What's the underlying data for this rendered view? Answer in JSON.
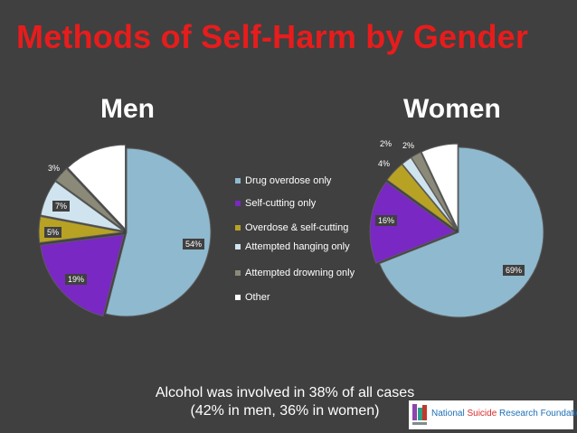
{
  "title": "Methods of Self-Harm by Gender",
  "footer": {
    "line1": "Alcohol was involved in 38% of all cases",
    "line2": "(42% in men, 36% in women)"
  },
  "logo": {
    "part1": "National ",
    "part2": "Suicide",
    "part3": " Research Foundation"
  },
  "colors": {
    "drug": "#8fb9ce",
    "cutting": "#7a28c3",
    "overdose_cutting": "#b8a224",
    "hanging": "#cfe4ee",
    "drowning": "#8b8a78",
    "other": "#ffffff"
  },
  "chart_data": {
    "type": "pie",
    "legend": [
      "Drug overdose only",
      "Self-cutting only",
      "Overdose & self-cutting",
      "Attempted hanging only",
      "Attempted drowning only",
      "Other"
    ],
    "legend_position": "center",
    "pies": [
      {
        "title": "Men",
        "values": [
          54,
          19,
          5,
          7,
          3,
          12
        ],
        "labels": [
          "54%",
          "19%",
          "5%",
          "7%",
          "3%",
          ""
        ]
      },
      {
        "title": "Women",
        "values": [
          69,
          16,
          4,
          2,
          2,
          7
        ],
        "labels": [
          "69%",
          "16%",
          "4%",
          "2%",
          "2%",
          ""
        ]
      }
    ]
  }
}
